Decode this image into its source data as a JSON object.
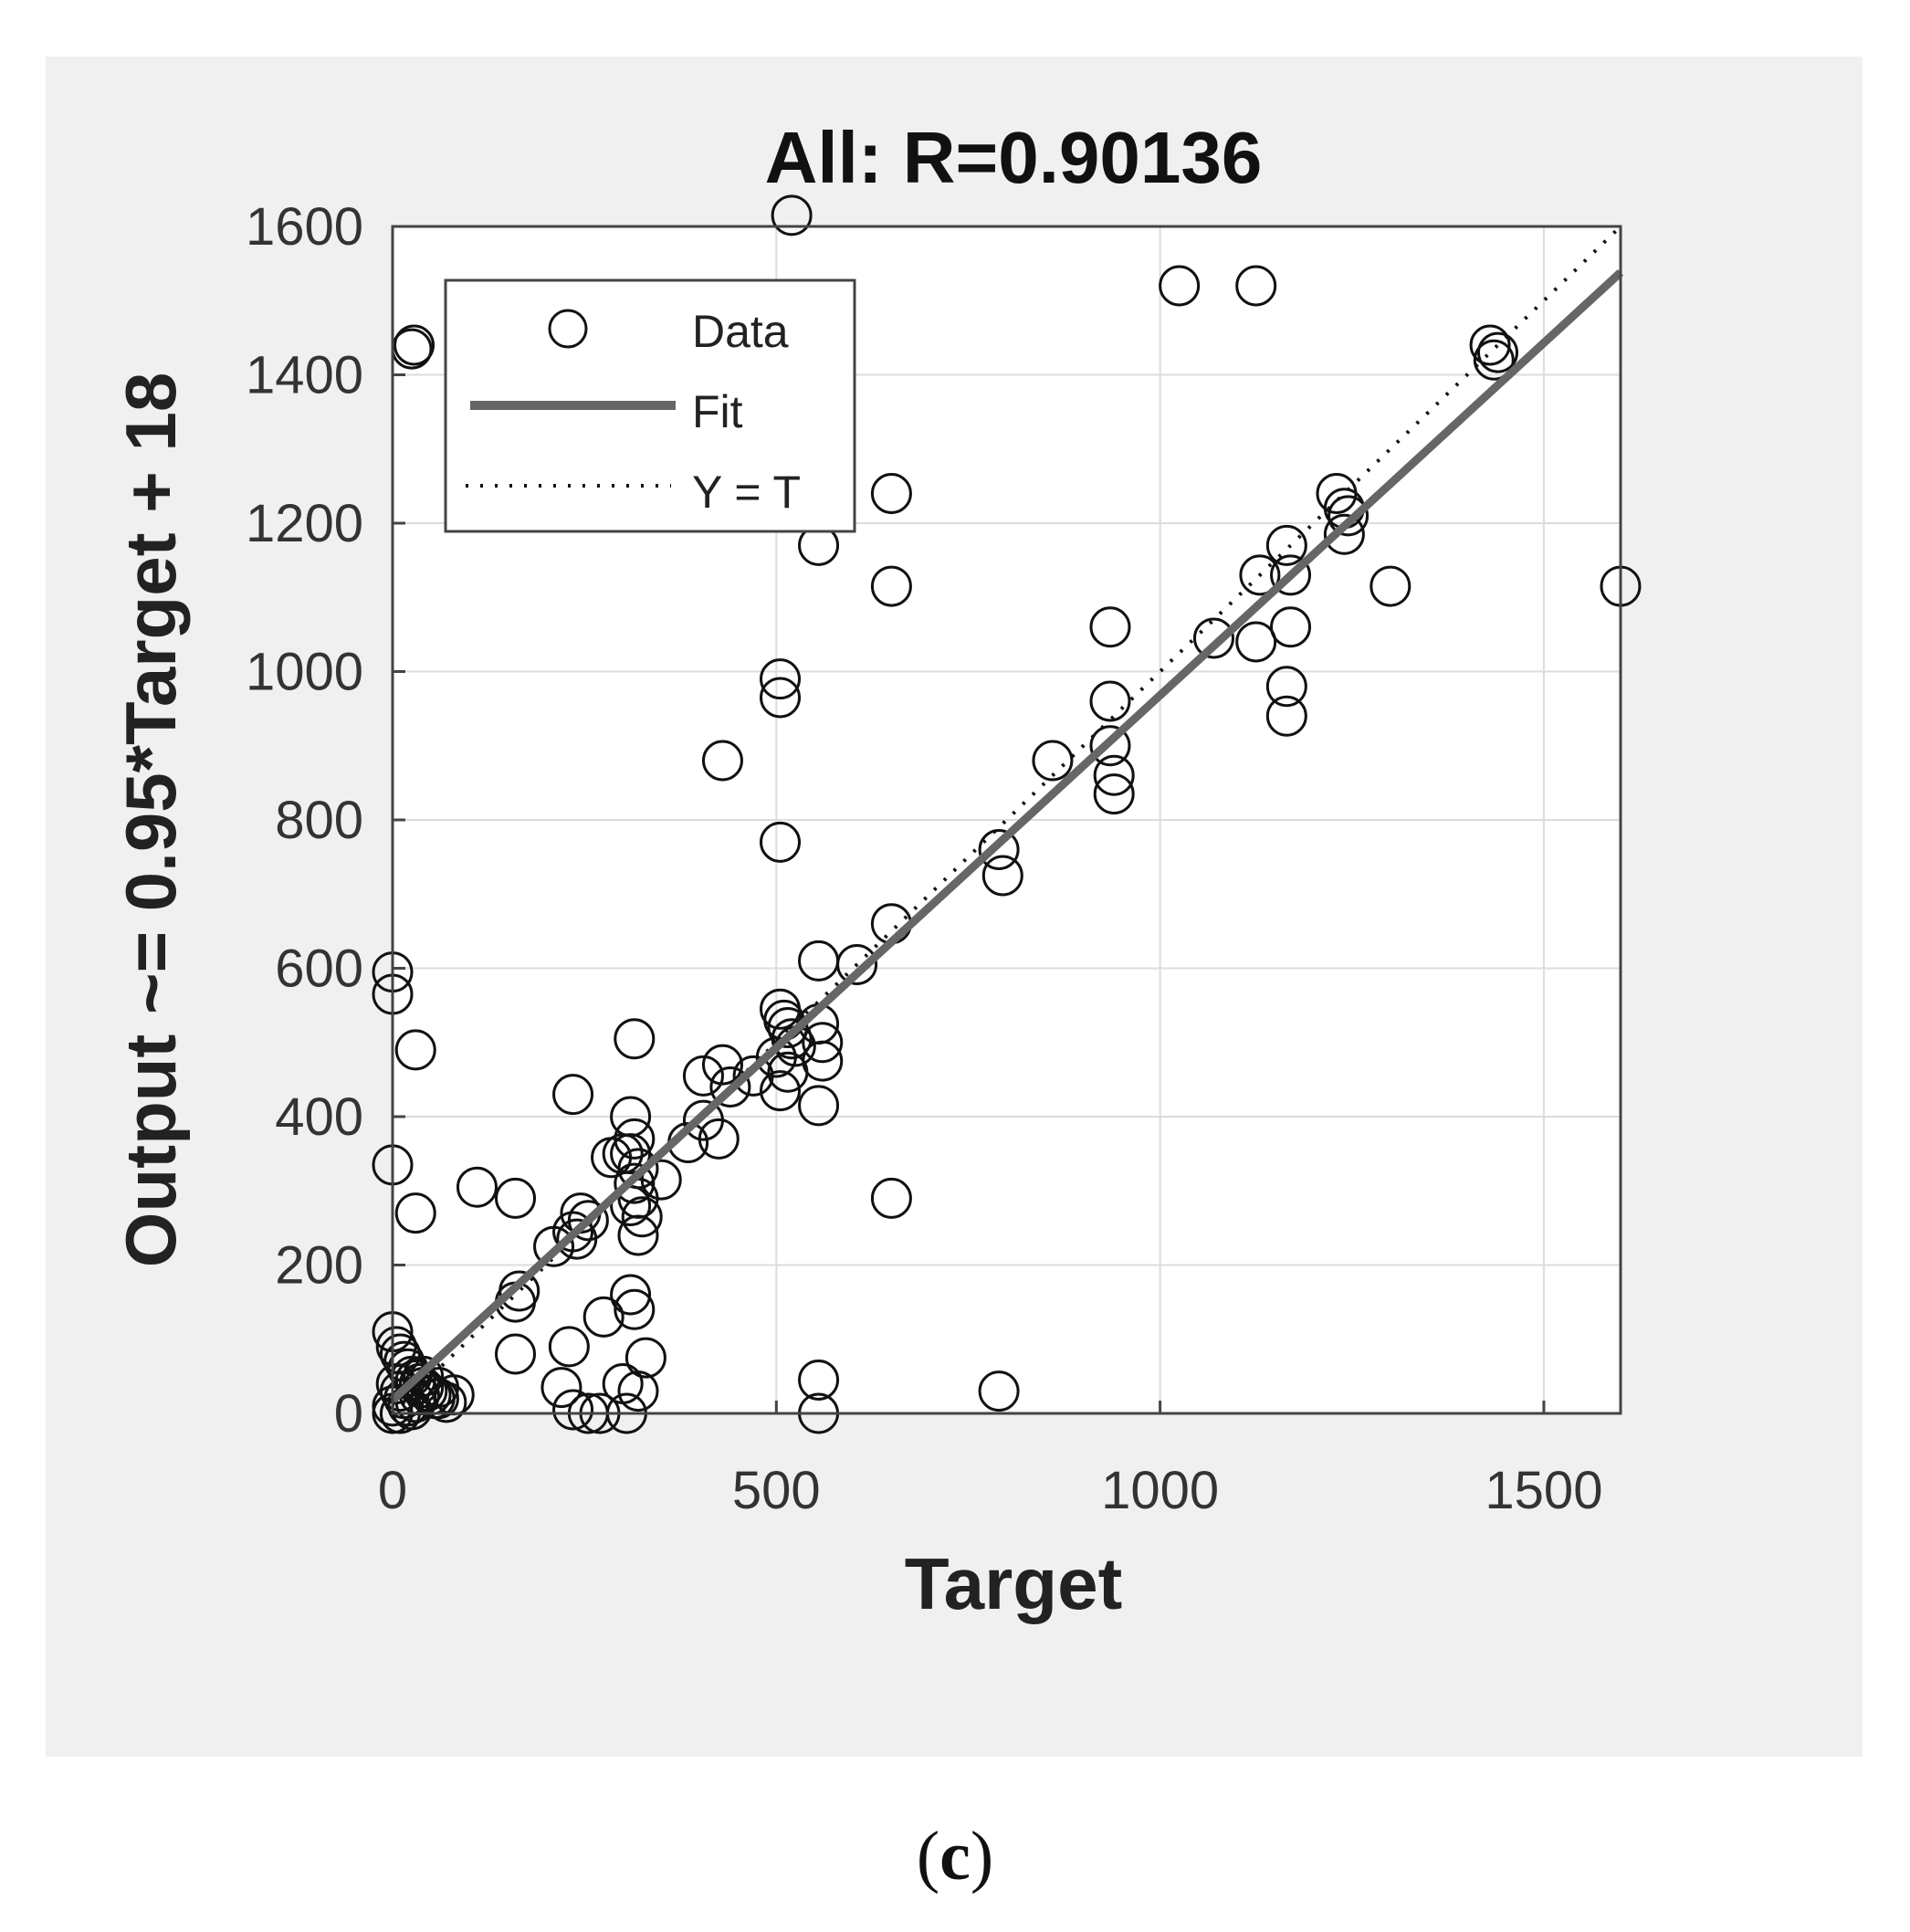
{
  "caption": {
    "open": "(",
    "letter": "c",
    "close": ")"
  },
  "colors": {
    "panel_bg": "#f0f0f0",
    "axes_bg": "#ffffff",
    "grid": "#dcdcdc",
    "marker": "#111111",
    "fit": "#666666",
    "identity": "#111111",
    "text": "#111111"
  },
  "chart_data": {
    "type": "scatter",
    "title": "All: R=0.90136",
    "xlabel": "Target",
    "ylabel": "Output ~= 0.95*Target + 18",
    "xlim": [
      0,
      1600
    ],
    "ylim": [
      0,
      1600
    ],
    "xticks": [
      0,
      500,
      1000,
      1500
    ],
    "yticks": [
      0,
      200,
      400,
      600,
      800,
      1000,
      1200,
      1400,
      1600
    ],
    "grid": true,
    "legend": {
      "placement": "top-left",
      "entries": [
        {
          "label": "Data",
          "style": "circle-marker"
        },
        {
          "label": "Fit",
          "style": "solid-line"
        },
        {
          "label": "Y = T",
          "style": "dotted-line"
        }
      ]
    },
    "fit": {
      "slope": 0.95,
      "intercept": 18
    },
    "identity": {
      "slope": 1,
      "intercept": 0
    },
    "points": [
      [
        520,
        1615
      ],
      [
        1025,
        1520
      ],
      [
        1125,
        1520
      ],
      [
        25,
        1435
      ],
      [
        28,
        1440
      ],
      [
        1430,
        1440
      ],
      [
        1435,
        1420
      ],
      [
        1440,
        1430
      ],
      [
        650,
        1240
      ],
      [
        1230,
        1240
      ],
      [
        1240,
        1220
      ],
      [
        1245,
        1210
      ],
      [
        1240,
        1185
      ],
      [
        555,
        1170
      ],
      [
        1165,
        1170
      ],
      [
        1170,
        1130
      ],
      [
        1130,
        1130
      ],
      [
        650,
        1115
      ],
      [
        1300,
        1115
      ],
      [
        1600,
        1115
      ],
      [
        935,
        1060
      ],
      [
        1170,
        1060
      ],
      [
        1070,
        1045
      ],
      [
        1125,
        1040
      ],
      [
        505,
        990
      ],
      [
        505,
        965
      ],
      [
        935,
        960
      ],
      [
        1165,
        980
      ],
      [
        1165,
        940
      ],
      [
        935,
        900
      ],
      [
        430,
        880
      ],
      [
        860,
        880
      ],
      [
        940,
        860
      ],
      [
        940,
        835
      ],
      [
        505,
        770
      ],
      [
        790,
        760
      ],
      [
        795,
        725
      ],
      [
        650,
        660
      ],
      [
        555,
        610
      ],
      [
        605,
        605
      ],
      [
        0,
        595
      ],
      [
        0,
        565
      ],
      [
        30,
        490
      ],
      [
        315,
        505
      ],
      [
        505,
        545
      ],
      [
        510,
        530
      ],
      [
        515,
        520
      ],
      [
        520,
        505
      ],
      [
        525,
        495
      ],
      [
        500,
        480
      ],
      [
        515,
        460
      ],
      [
        505,
        435
      ],
      [
        555,
        525
      ],
      [
        560,
        500
      ],
      [
        560,
        475
      ],
      [
        555,
        415
      ],
      [
        405,
        455
      ],
      [
        430,
        470
      ],
      [
        470,
        455
      ],
      [
        440,
        440
      ],
      [
        235,
        430
      ],
      [
        405,
        395
      ],
      [
        425,
        370
      ],
      [
        385,
        365
      ],
      [
        310,
        400
      ],
      [
        315,
        370
      ],
      [
        310,
        350
      ],
      [
        320,
        330
      ],
      [
        315,
        310
      ],
      [
        320,
        290
      ],
      [
        310,
        280
      ],
      [
        325,
        265
      ],
      [
        320,
        240
      ],
      [
        300,
        350
      ],
      [
        285,
        345
      ],
      [
        350,
        315
      ],
      [
        0,
        335
      ],
      [
        30,
        270
      ],
      [
        110,
        305
      ],
      [
        160,
        290
      ],
      [
        650,
        290
      ],
      [
        210,
        225
      ],
      [
        235,
        245
      ],
      [
        245,
        270
      ],
      [
        255,
        260
      ],
      [
        240,
        235
      ],
      [
        165,
        165
      ],
      [
        160,
        150
      ],
      [
        310,
        160
      ],
      [
        315,
        140
      ],
      [
        275,
        130
      ],
      [
        160,
        80
      ],
      [
        230,
        90
      ],
      [
        330,
        75
      ],
      [
        300,
        40
      ],
      [
        220,
        35
      ],
      [
        320,
        30
      ],
      [
        555,
        45
      ],
      [
        790,
        30
      ],
      [
        0,
        110
      ],
      [
        5,
        90
      ],
      [
        10,
        80
      ],
      [
        15,
        70
      ],
      [
        20,
        60
      ],
      [
        25,
        50
      ],
      [
        30,
        45
      ],
      [
        35,
        40
      ],
      [
        40,
        35
      ],
      [
        45,
        30
      ],
      [
        50,
        25
      ],
      [
        55,
        20
      ],
      [
        60,
        20
      ],
      [
        70,
        15
      ],
      [
        80,
        25
      ],
      [
        5,
        40
      ],
      [
        10,
        30
      ],
      [
        15,
        20
      ],
      [
        20,
        10
      ],
      [
        25,
        5
      ],
      [
        30,
        15
      ],
      [
        35,
        25
      ],
      [
        0,
        10
      ],
      [
        0,
        0
      ],
      [
        10,
        0
      ],
      [
        40,
        50
      ],
      [
        60,
        35
      ],
      [
        235,
        5
      ],
      [
        255,
        0
      ],
      [
        270,
        0
      ],
      [
        305,
        0
      ],
      [
        555,
        0
      ]
    ]
  }
}
